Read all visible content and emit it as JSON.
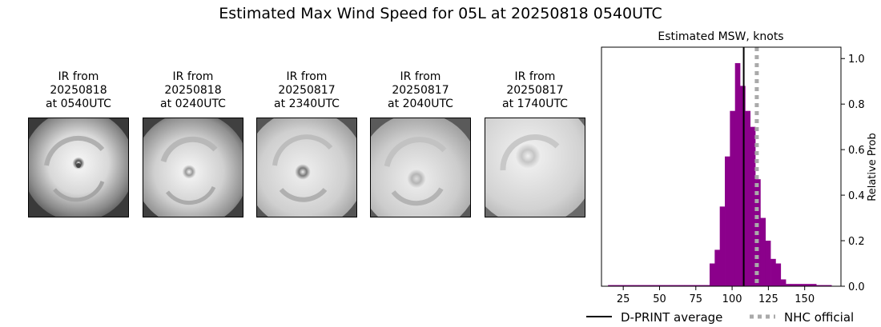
{
  "title": "Estimated Max Wind Speed for 05L at 20250818 0540UTC",
  "ir_panels": [
    {
      "label": "IR from\n20250818\nat 0540UTC"
    },
    {
      "label": "IR from\n20250818\nat 0240UTC"
    },
    {
      "label": "IR from\n20250817\nat 2340UTC"
    },
    {
      "label": "IR from\n20250817\nat 2040UTC"
    },
    {
      "label": "IR from\n20250817\nat 1740UTC"
    }
  ],
  "chart_data": {
    "type": "bar",
    "title": "Estimated MSW, knots",
    "xlabel": "",
    "ylabel": "Relative Prob",
    "xlim": [
      10,
      175
    ],
    "ylim": [
      0,
      1.05
    ],
    "xticks": [
      25,
      50,
      75,
      100,
      125,
      150
    ],
    "yticks": [
      0.0,
      0.2,
      0.4,
      0.6,
      0.8,
      1.0
    ],
    "ytick_labels": [
      "0.0",
      "0.2",
      "0.4",
      "0.6",
      "0.8",
      "1.0"
    ],
    "bar_color": "#8b008b",
    "bin_width": 3.5,
    "bins": [
      {
        "x0": 14.5,
        "value": 0.005
      },
      {
        "x0": 18,
        "value": 0.005
      },
      {
        "x0": 21.5,
        "value": 0.005
      },
      {
        "x0": 25,
        "value": 0.005
      },
      {
        "x0": 28.5,
        "value": 0.005
      },
      {
        "x0": 32,
        "value": 0.005
      },
      {
        "x0": 35.5,
        "value": 0.005
      },
      {
        "x0": 39,
        "value": 0.005
      },
      {
        "x0": 42.5,
        "value": 0.005
      },
      {
        "x0": 46,
        "value": 0.005
      },
      {
        "x0": 49.5,
        "value": 0.005
      },
      {
        "x0": 53,
        "value": 0.005
      },
      {
        "x0": 56.5,
        "value": 0.005
      },
      {
        "x0": 60,
        "value": 0.005
      },
      {
        "x0": 63.5,
        "value": 0.005
      },
      {
        "x0": 67,
        "value": 0.005
      },
      {
        "x0": 70.5,
        "value": 0.005
      },
      {
        "x0": 74,
        "value": 0.005
      },
      {
        "x0": 77.5,
        "value": 0.005
      },
      {
        "x0": 81,
        "value": 0.005
      },
      {
        "x0": 84.5,
        "value": 0.1
      },
      {
        "x0": 88,
        "value": 0.16
      },
      {
        "x0": 91.5,
        "value": 0.35
      },
      {
        "x0": 95,
        "value": 0.57
      },
      {
        "x0": 98.5,
        "value": 0.77
      },
      {
        "x0": 102,
        "value": 0.98
      },
      {
        "x0": 105.5,
        "value": 0.88
      },
      {
        "x0": 109,
        "value": 0.77
      },
      {
        "x0": 112.5,
        "value": 0.7
      },
      {
        "x0": 116,
        "value": 0.47
      },
      {
        "x0": 119.5,
        "value": 0.3
      },
      {
        "x0": 123,
        "value": 0.2
      },
      {
        "x0": 126.5,
        "value": 0.12
      },
      {
        "x0": 130,
        "value": 0.1
      },
      {
        "x0": 133.5,
        "value": 0.03
      },
      {
        "x0": 137,
        "value": 0.01
      },
      {
        "x0": 140.5,
        "value": 0.01
      },
      {
        "x0": 144,
        "value": 0.01
      },
      {
        "x0": 147.5,
        "value": 0.01
      },
      {
        "x0": 151,
        "value": 0.01
      },
      {
        "x0": 154.5,
        "value": 0.01
      },
      {
        "x0": 158,
        "value": 0.005
      },
      {
        "x0": 161.5,
        "value": 0.005
      },
      {
        "x0": 165,
        "value": 0.005
      }
    ],
    "dprint_average": 108,
    "nhc_official": 117,
    "legend_placement": "bottom",
    "legend": [
      {
        "label": "D-PRINT average",
        "color": "#000000",
        "style": "solid"
      },
      {
        "label": "NHC official",
        "color": "#aaaaaa",
        "style": "dotted"
      }
    ],
    "grid": false
  }
}
